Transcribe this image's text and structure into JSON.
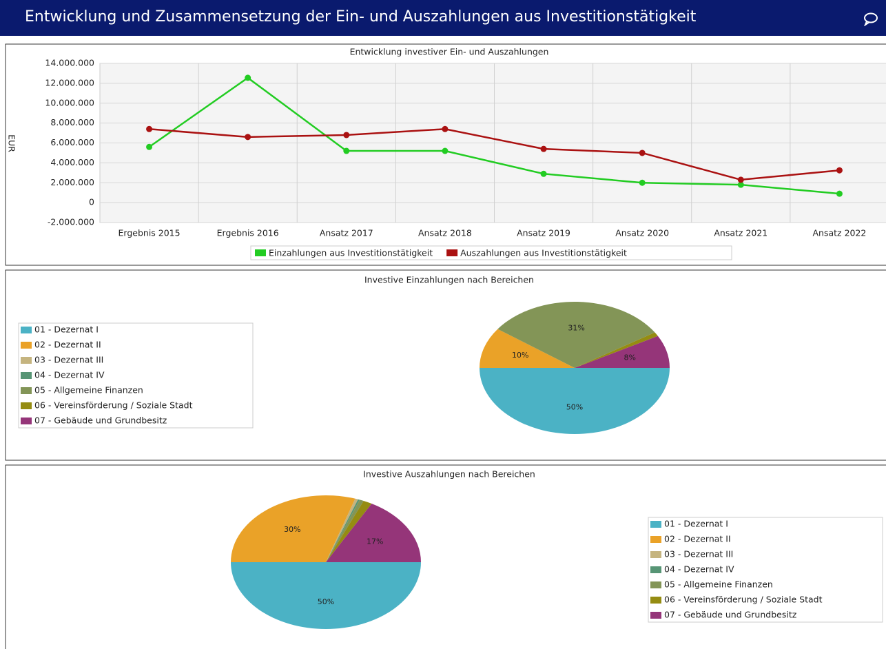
{
  "header": {
    "title": "Entwicklung und Zusammensetzung der Ein- und Auszahlungen aus Investitionstätigkeit"
  },
  "chart_data": [
    {
      "type": "line",
      "title": "Entwicklung investiver Ein- und Auszahlungen",
      "y_label": "EUR",
      "categories": [
        "Ergebnis 2015",
        "Ergebnis 2016",
        "Ansatz 2017",
        "Ansatz 2018",
        "Ansatz 2019",
        "Ansatz 2020",
        "Ansatz 2021",
        "Ansatz 2022"
      ],
      "series": [
        {
          "name": "Einzahlungen aus Investitionstätigkeit",
          "color": "#22cc22",
          "values": [
            5600000,
            12550000,
            5200000,
            5200000,
            2900000,
            2000000,
            1800000,
            900000
          ]
        },
        {
          "name": "Auszahlungen aus Investitionstätigkeit",
          "color": "#aa1111",
          "values": [
            7400000,
            6600000,
            6800000,
            7400000,
            5400000,
            5000000,
            2300000,
            3250000
          ]
        }
      ],
      "ylim": [
        -2000000,
        14000000
      ],
      "yticks": [
        {
          "value": -2000000,
          "label": "-2.000.000"
        },
        0,
        {
          "value": 2000000,
          "label": "2.000.000"
        },
        {
          "value": 4000000,
          "label": "4.000.000"
        },
        {
          "value": 6000000,
          "label": "6.000.000"
        },
        {
          "value": 8000000,
          "label": "8.000.000"
        },
        {
          "value": 10000000,
          "label": "10.000.000"
        },
        {
          "value": 12000000,
          "label": "12.000.000"
        },
        {
          "value": 14000000,
          "label": "14.000.000"
        }
      ],
      "grid": true,
      "legend": "bottom"
    },
    {
      "type": "pie",
      "title": "Investive Einzahlungen nach Bereichen",
      "categories": [
        "01 - Dezernat I",
        "02 - Dezernat II",
        "03 - Dezernat III",
        "04 - Dezernat IV",
        "05 - Allgemeine Finanzen",
        "06 - Vereinsförderung / Soziale Stadt",
        "07 - Gebäude und Grundbesitz"
      ],
      "values": [
        50,
        10,
        0,
        0,
        31,
        1,
        8
      ],
      "value_labels": [
        "50%",
        "10%",
        null,
        null,
        "31%",
        null,
        "8%"
      ],
      "colors": [
        "#4bb2c5",
        "#eaa228",
        "#c5b47f",
        "#579575",
        "#839557",
        "#958c12",
        "#953579"
      ],
      "legend": "left"
    },
    {
      "type": "pie",
      "title": "Investive Auszahlungen nach Bereichen",
      "categories": [
        "01 - Dezernat I",
        "02 - Dezernat II",
        "03 - Dezernat III",
        "04 - Dezernat IV",
        "05 - Allgemeine Finanzen",
        "06 - Vereinsförderung / Soziale Stadt",
        "07 - Gebäude und Grundbesitz"
      ],
      "values": [
        50,
        30,
        0.5,
        0.3,
        0.7,
        1.5,
        17
      ],
      "value_labels": [
        "50%",
        "30%",
        null,
        null,
        null,
        null,
        "17%"
      ],
      "colors": [
        "#4bb2c5",
        "#eaa228",
        "#c5b47f",
        "#579575",
        "#839557",
        "#958c12",
        "#953579"
      ],
      "legend": "right"
    }
  ]
}
